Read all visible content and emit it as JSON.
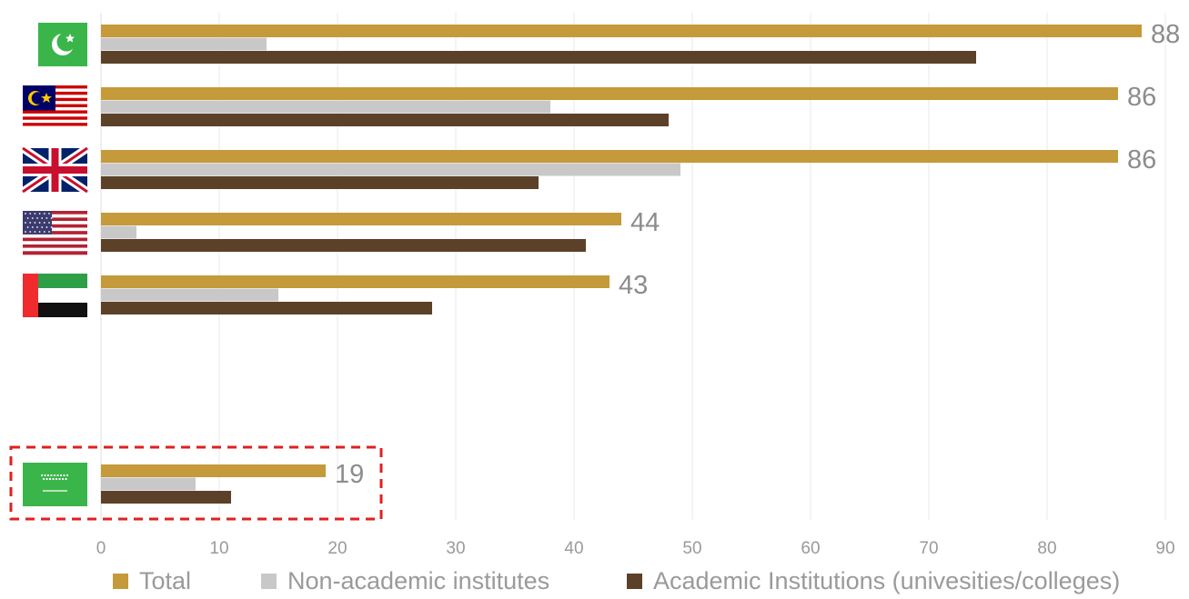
{
  "chart_data": {
    "type": "bar",
    "orientation": "horizontal",
    "categories": [
      "Pakistan",
      "Malaysia",
      "United Kingdom",
      "United States",
      "United Arab Emirates",
      "Saudi Arabia"
    ],
    "category_icons": [
      "pakistan-flag-icon",
      "malaysia-flag-icon",
      "uk-flag-icon",
      "usa-flag-icon",
      "uae-flag-icon",
      "saudi-arabia-flag-icon"
    ],
    "series": [
      {
        "name": "Total",
        "color": "#c49a3a",
        "values": [
          88,
          86,
          86,
          44,
          43,
          19
        ]
      },
      {
        "name": "Non-academic institutes",
        "color": "#c8c8c8",
        "values": [
          14,
          38,
          49,
          3,
          15,
          8
        ]
      },
      {
        "name": "Academic Institutions (univesities/colleges)",
        "color": "#5c4129",
        "values": [
          74,
          48,
          37,
          41,
          28,
          11
        ]
      }
    ],
    "data_labels": [
      "88",
      "86",
      "86",
      "44",
      "43",
      "19"
    ],
    "x_ticks": [
      "0",
      "10",
      "20",
      "30",
      "40",
      "50",
      "60",
      "70",
      "80",
      "90"
    ],
    "xlim": [
      0,
      90
    ],
    "grid": "vertical",
    "legend_position": "bottom",
    "highlight": {
      "category": "Saudi Arabia",
      "style": "red dashed box",
      "color": "#e02020"
    }
  }
}
